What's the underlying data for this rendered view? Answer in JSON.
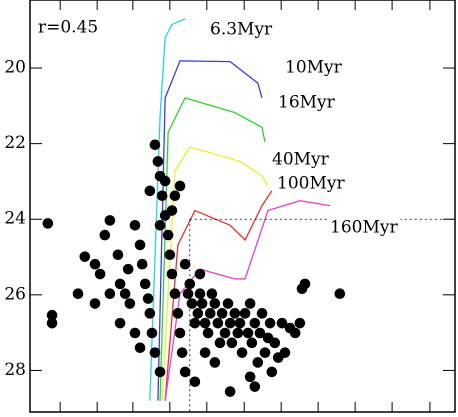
{
  "chart_data": {
    "type": "scatter",
    "annotation": "r=0.45",
    "xlim": [
      0,
      10
    ],
    "ylim": [
      29.1,
      18.2
    ],
    "xticks": [
      0.71,
      1.58,
      2.42,
      3.29,
      4.16,
      5.04,
      5.91,
      6.78,
      7.65,
      8.52,
      9.41
    ],
    "yticks": [
      20,
      22,
      24,
      26,
      28
    ],
    "reference_lines": {
      "x": 3.76,
      "y": 24
    },
    "lines": [
      {
        "name": "6.3Myr",
        "color": "#22d3e6",
        "x": [
          2.82,
          3.06,
          3.18,
          3.34,
          3.65
        ],
        "values": [
          28.8,
          21.3,
          19.2,
          18.85,
          18.7
        ]
      },
      {
        "name": "10Myr",
        "color": "#3a3ae6",
        "x": [
          3.01,
          3.18,
          3.53,
          4.71,
          5.36,
          5.46
        ],
        "values": [
          28.8,
          20.79,
          19.81,
          19.83,
          20.4,
          20.79
        ]
      },
      {
        "name": "16Myr",
        "color": "#2bd42b",
        "x": [
          3.06,
          3.25,
          3.65,
          4.82,
          5.46,
          5.53
        ],
        "values": [
          28.8,
          21.7,
          20.79,
          21.18,
          21.57,
          21.96
        ]
      },
      {
        "name": "40Myr",
        "color": "#eeee30",
        "x": [
          3.11,
          3.41,
          3.76,
          4.94,
          5.46,
          5.6
        ],
        "values": [
          28.8,
          22.73,
          22.09,
          22.47,
          22.86,
          23.12
        ]
      },
      {
        "name": "100Myr",
        "color": "#e63030",
        "x": [
          3.18,
          3.48,
          3.88,
          4.71,
          5.06,
          5.46,
          5.69
        ],
        "values": [
          28.8,
          24.68,
          23.77,
          24.16,
          24.55,
          23.64,
          23.25
        ]
      },
      {
        "name": "160Myr",
        "color": "#e640d8",
        "x": [
          3.18,
          3.53,
          4.0,
          4.82,
          5.06,
          5.6,
          6.35,
          7.06
        ],
        "values": [
          28.8,
          25.97,
          25.32,
          25.58,
          25.58,
          23.77,
          23.51,
          23.64
        ]
      }
    ],
    "points": {
      "color": "#000000",
      "x": [
        0.42,
        0.52,
        0.52,
        1.13,
        1.29,
        1.53,
        1.65,
        1.76,
        1.88,
        2.07,
        2.12,
        2.24,
        2.35,
        2.31,
        2.47,
        2.59,
        2.64,
        2.71,
        2.78,
        2.82,
        2.87,
        2.94,
        2.82,
        2.94,
        3.01,
        3.06,
        3.11,
        3.18,
        3.25,
        3.29,
        3.34,
        3.41,
        3.48,
        3.53,
        3.58,
        3.65,
        3.72,
        3.76,
        3.81,
        3.88,
        3.95,
        4.0,
        4.05,
        4.12,
        4.19,
        4.24,
        4.28,
        4.35,
        4.42,
        4.47,
        4.52,
        4.59,
        4.66,
        4.71,
        4.75,
        4.82,
        4.89,
        4.94,
        4.99,
        5.06,
        5.13,
        5.18,
        5.22,
        5.29,
        5.36,
        5.41,
        5.46,
        5.53,
        5.6,
        5.65,
        5.69,
        5.76,
        5.84,
        5.93,
        6.0,
        6.12,
        6.24,
        6.35,
        6.4,
        6.47,
        7.29,
        3.88,
        4.71,
        5.29,
        3.41,
        3.53,
        3.34,
        3.18,
        3.06,
        3.65,
        4.0,
        2.47,
        2.12,
        1.88,
        1.53,
        3.06,
        2.59,
        5.18,
        4.35,
        4.12
      ],
      "values": [
        24.11,
        26.54,
        26.75,
        25.97,
        24.99,
        25.19,
        25.45,
        24.42,
        24.03,
        24.94,
        25.71,
        25.97,
        26.23,
        25.32,
        24.16,
        24.68,
        25.19,
        25.71,
        26.1,
        26.49,
        27.01,
        27.53,
        23.25,
        22.03,
        22.47,
        22.86,
        23.38,
        23.9,
        24.42,
        24.94,
        25.45,
        25.97,
        26.49,
        27.01,
        27.53,
        28.04,
        25.97,
        25.71,
        26.23,
        26.75,
        26.49,
        25.97,
        26.23,
        26.75,
        27.01,
        26.49,
        25.97,
        26.23,
        26.75,
        27.27,
        26.49,
        27.01,
        26.23,
        26.75,
        27.27,
        26.49,
        27.01,
        26.75,
        27.53,
        26.49,
        27.01,
        26.23,
        27.27,
        26.75,
        27.79,
        27.01,
        26.49,
        27.53,
        27.14,
        26.75,
        28.04,
        27.27,
        27.66,
        26.75,
        27.53,
        26.88,
        27.01,
        26.75,
        25.84,
        25.71,
        25.97,
        28.3,
        28.56,
        28.43,
        23.38,
        23.12,
        23.77,
        22.99,
        24.16,
        25.19,
        25.45,
        27.01,
        26.75,
        25.97,
        26.23,
        28.04,
        27.4,
        28.17,
        27.79,
        27.53
      ]
    }
  }
}
